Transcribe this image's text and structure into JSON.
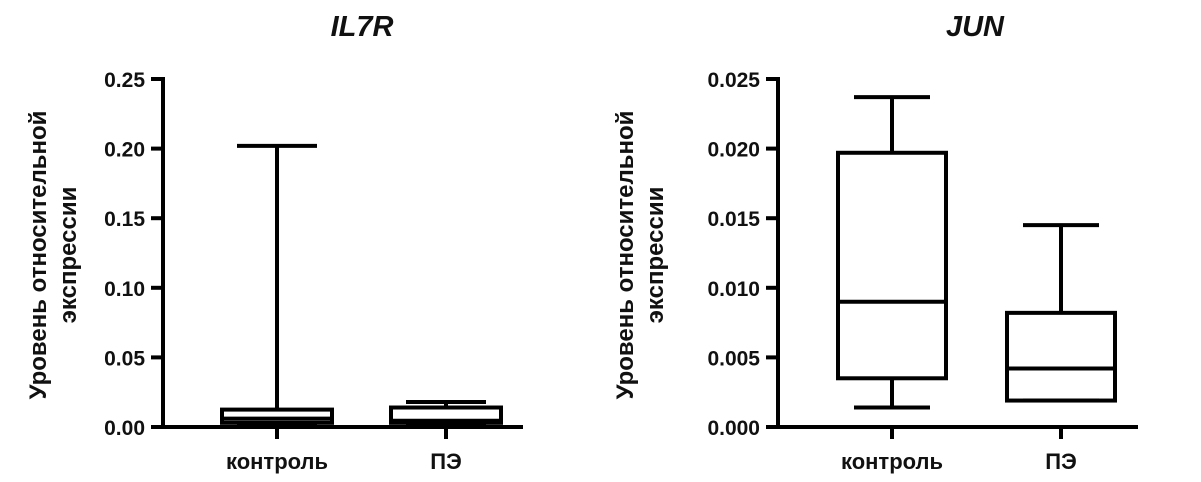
{
  "chart_data": [
    {
      "type": "box",
      "title": "IL7R",
      "ylabel_lines": [
        "Уровень относительной",
        "экспрессии"
      ],
      "ylim": [
        0,
        0.25
      ],
      "yticks": [
        0,
        0.05,
        0.1,
        0.15,
        0.2,
        0.25
      ],
      "ytick_labels": [
        "0.00",
        "0.05",
        "0.10",
        "0.15",
        "0.20",
        "0.25"
      ],
      "categories": [
        "контроль",
        "ПЭ"
      ],
      "boxes": [
        {
          "min": 0.0015,
          "q1": 0.003,
          "median": 0.006,
          "q3": 0.0125,
          "max": 0.202
        },
        {
          "min": 0.002,
          "q1": 0.003,
          "median": 0.0045,
          "q3": 0.014,
          "max": 0.018
        }
      ]
    },
    {
      "type": "box",
      "title": "JUN",
      "ylabel_lines": [
        "Уровень относительной",
        "экспрессии"
      ],
      "ylim": [
        0,
        0.025
      ],
      "yticks": [
        0,
        0.005,
        0.01,
        0.015,
        0.02,
        0.025
      ],
      "ytick_labels": [
        "0.000",
        "0.005",
        "0.010",
        "0.015",
        "0.020",
        "0.025"
      ],
      "categories": [
        "контроль",
        "ПЭ"
      ],
      "boxes": [
        {
          "min": 0.0014,
          "q1": 0.0035,
          "median": 0.009,
          "q3": 0.0197,
          "max": 0.0237
        },
        {
          "min": 0.0019,
          "q1": 0.0019,
          "median": 0.0042,
          "q3": 0.0082,
          "max": 0.0145
        }
      ]
    }
  ]
}
